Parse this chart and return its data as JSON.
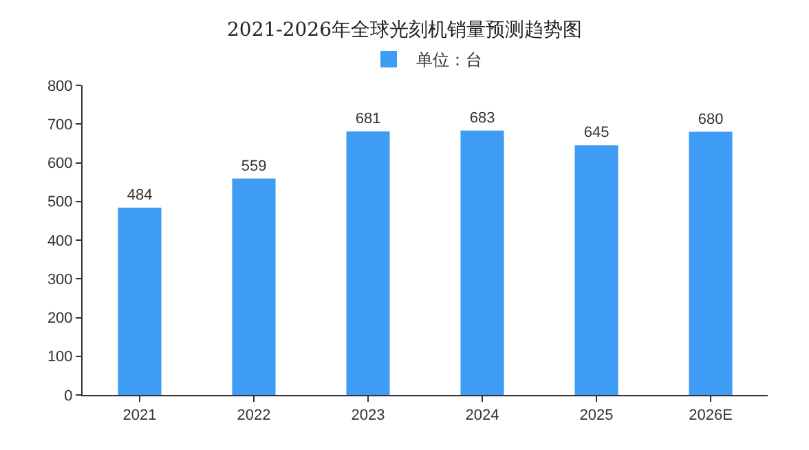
{
  "chart_data": {
    "type": "bar",
    "title": "2021-2026年全球光刻机销量预测趋势图",
    "categories": [
      "2021",
      "2022",
      "2023",
      "2024",
      "2025",
      "2026E"
    ],
    "series": [
      {
        "name": "单位：台",
        "color": "#3f9cf5",
        "values": [
          484,
          559,
          681,
          683,
          645,
          680
        ]
      }
    ],
    "ylim": [
      0,
      800
    ],
    "yticks": [
      0,
      100,
      200,
      300,
      400,
      500,
      600,
      700,
      800
    ],
    "grid": false,
    "legend": "top",
    "data_labels": true
  }
}
